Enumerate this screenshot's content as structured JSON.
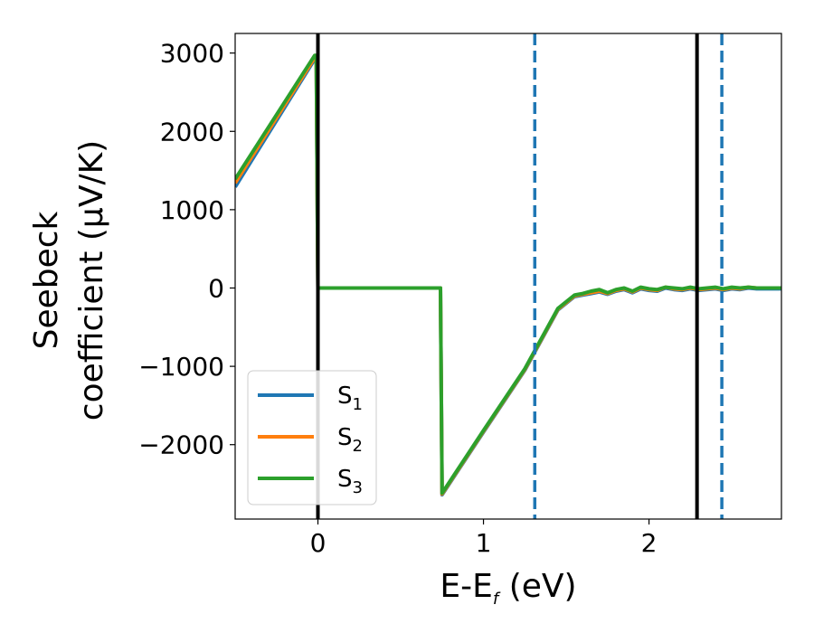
{
  "chart_data": {
    "type": "line",
    "xlabel": "E-E",
    "xlabel_sub": "f",
    "xlabel_unit": " (eV)",
    "ylabel_line1": "Seebeck",
    "ylabel_line2": "coefficient  (μV/K)",
    "xlim": [
      -0.5,
      2.8
    ],
    "ylim": [
      -2950,
      3250
    ],
    "xticks": [
      0,
      1,
      2
    ],
    "xtick_labels": [
      "0",
      "1",
      "2"
    ],
    "yticks": [
      -2000,
      -1000,
      0,
      1000,
      2000,
      3000
    ],
    "ytick_labels": [
      "−2000",
      "−1000",
      "0",
      "1000",
      "2000",
      "3000"
    ],
    "vlines": [
      {
        "x": 0.0,
        "style": "solid",
        "color": "#000000"
      },
      {
        "x": 2.29,
        "style": "solid",
        "color": "#000000"
      },
      {
        "x": 1.31,
        "style": "dashed",
        "color": "#1f77b4"
      },
      {
        "x": 2.44,
        "style": "dashed",
        "color": "#1f77b4"
      }
    ],
    "legend_position": "lower-left",
    "series": [
      {
        "name": "S",
        "sub": "1",
        "color": "#1f77b4",
        "x": [
          -0.5,
          -0.02,
          -0.01,
          0.0,
          0.74,
          0.75,
          1.0,
          1.25,
          1.45,
          1.55,
          1.6,
          1.65,
          1.7,
          1.75,
          1.8,
          1.85,
          1.9,
          1.95,
          2.0,
          2.05,
          2.1,
          2.15,
          2.2,
          2.25,
          2.3,
          2.35,
          2.4,
          2.45,
          2.5,
          2.55,
          2.6,
          2.65,
          2.7,
          2.8
        ],
        "y": [
          1290,
          2920,
          2920,
          0,
          0,
          -2640,
          -1840,
          -1050,
          -280,
          -110,
          -90,
          -70,
          -50,
          -80,
          -40,
          -20,
          -60,
          -10,
          -30,
          -40,
          0,
          -20,
          -30,
          -10,
          -30,
          -20,
          -10,
          -30,
          -10,
          -20,
          0,
          -10,
          -10,
          -10
        ]
      },
      {
        "name": "S",
        "sub": "2",
        "color": "#ff7f0e",
        "x": [
          -0.5,
          -0.02,
          -0.01,
          0.0,
          0.74,
          0.75,
          1.0,
          1.25,
          1.45,
          1.55,
          1.6,
          1.65,
          1.7,
          1.75,
          1.8,
          1.85,
          1.9,
          1.95,
          2.0,
          2.05,
          2.1,
          2.15,
          2.2,
          2.25,
          2.3,
          2.35,
          2.4,
          2.45,
          2.5,
          2.55,
          2.6,
          2.65,
          2.7,
          2.8
        ],
        "y": [
          1340,
          2940,
          2940,
          0,
          0,
          -2630,
          -1830,
          -1040,
          -270,
          -100,
          -80,
          -60,
          -40,
          -70,
          -30,
          -10,
          -50,
          0,
          -20,
          -30,
          10,
          -10,
          -20,
          0,
          -20,
          -10,
          0,
          -20,
          0,
          -10,
          10,
          0,
          0,
          0
        ]
      },
      {
        "name": "S",
        "sub": "3",
        "color": "#2ca02c",
        "x": [
          -0.5,
          -0.02,
          -0.01,
          0.0,
          0.74,
          0.75,
          1.0,
          1.25,
          1.45,
          1.55,
          1.6,
          1.65,
          1.7,
          1.75,
          1.8,
          1.85,
          1.9,
          1.95,
          2.0,
          2.05,
          2.1,
          2.15,
          2.2,
          2.25,
          2.3,
          2.35,
          2.4,
          2.45,
          2.5,
          2.55,
          2.6,
          2.65,
          2.7,
          2.8
        ],
        "y": [
          1390,
          2970,
          2970,
          0,
          0,
          -2620,
          -1820,
          -1030,
          -260,
          -90,
          -70,
          -40,
          -20,
          -60,
          -20,
          0,
          -40,
          10,
          -10,
          -20,
          10,
          0,
          -10,
          10,
          -10,
          0,
          10,
          -10,
          10,
          0,
          10,
          0,
          0,
          0
        ]
      }
    ]
  }
}
